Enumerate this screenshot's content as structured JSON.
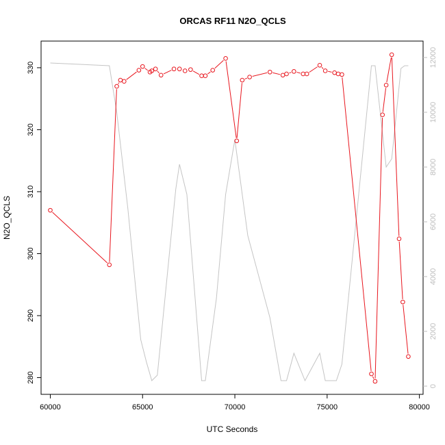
{
  "chart_data": {
    "type": "line",
    "title": "ORCAS RF11 N2O_QCLS",
    "xlabel": "UTC Seconds",
    "ylabel": "N2O_QCLS",
    "y2label": "",
    "xlim": [
      59500,
      80200
    ],
    "ylim": [
      277.3,
      334.3
    ],
    "y2lim": [
      -300,
      12600
    ],
    "x_ticks": [
      60000,
      65000,
      70000,
      75000,
      80000
    ],
    "y_ticks": [
      280,
      290,
      300,
      310,
      320,
      330
    ],
    "y2_ticks": [
      0,
      2000,
      4000,
      6000,
      8000,
      10000,
      12000
    ],
    "grid": false,
    "legend": "none",
    "colors": {
      "n2o": "#e8141c",
      "altitude": "#c4c4c4",
      "axis": "#000000",
      "right_axis": "#bdbdbd"
    },
    "series": [
      {
        "axis": "left",
        "style": "line+points",
        "x": [
          60000,
          63200,
          63600,
          63800,
          64000,
          64800,
          65000,
          65400,
          65500,
          65700,
          66000,
          66700,
          67000,
          67300,
          67600,
          68200,
          68400,
          68800,
          69500,
          70100,
          70400,
          70800,
          71900,
          72600,
          72800,
          73200,
          73700,
          73900,
          74600,
          74900,
          75400,
          75600,
          75800,
          77400,
          77600,
          78000,
          78200,
          78500,
          78900,
          79100,
          79400
        ],
        "y": [
          307.0,
          298.2,
          327.0,
          328.0,
          327.8,
          329.6,
          330.2,
          329.3,
          329.5,
          329.8,
          328.8,
          329.8,
          329.8,
          329.5,
          329.7,
          328.7,
          328.7,
          329.6,
          331.5,
          318.2,
          328.0,
          328.5,
          329.3,
          328.8,
          329.0,
          329.4,
          329.0,
          329.0,
          330.4,
          329.5,
          329.2,
          329.0,
          328.9,
          280.6,
          279.4,
          322.4,
          327.2,
          332.1,
          302.4,
          292.2,
          283.4
        ]
      },
      {
        "axis": "right",
        "style": "line",
        "x": [
          60000,
          63200,
          63600,
          64200,
          64900,
          65200,
          65500,
          65800,
          66800,
          67000,
          67400,
          68200,
          68400,
          69000,
          69500,
          70000,
          70700,
          71900,
          72500,
          72800,
          73200,
          73800,
          74600,
          74900,
          75500,
          75800,
          77400,
          77600,
          78200,
          78500,
          79000,
          79200,
          79400
        ],
        "y": [
          11800,
          11700,
          10000,
          6500,
          1700,
          900,
          200,
          400,
          7200,
          8100,
          7000,
          200,
          200,
          3200,
          7000,
          9000,
          5500,
          2500,
          200,
          200,
          1200,
          200,
          1200,
          200,
          200,
          800,
          11700,
          11700,
          8000,
          8300,
          11600,
          11700,
          11700
        ]
      }
    ]
  }
}
